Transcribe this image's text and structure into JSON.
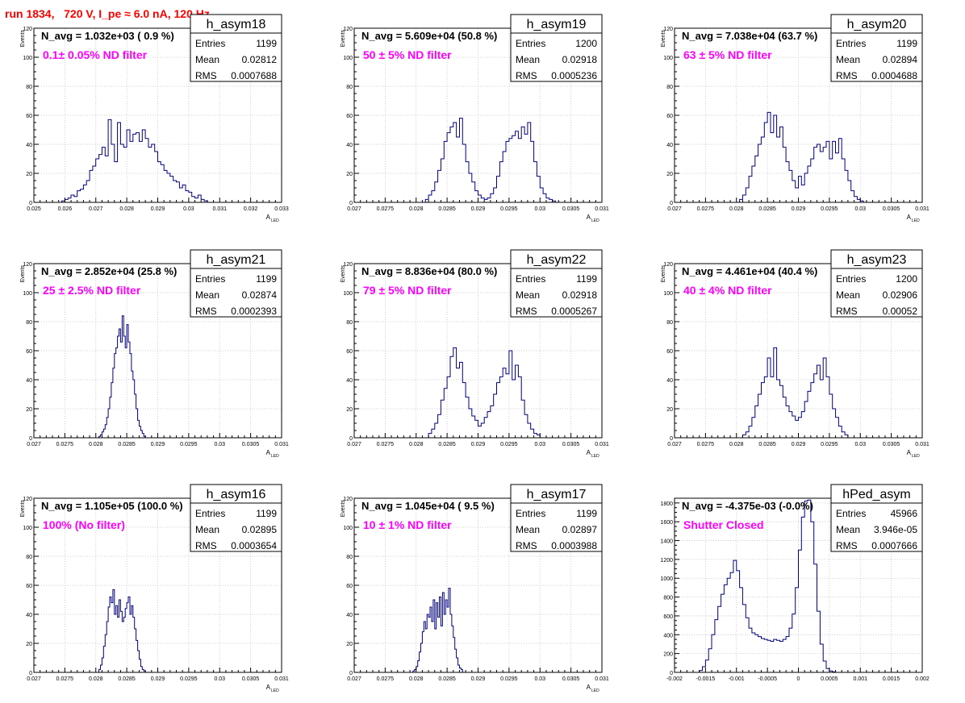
{
  "page": {
    "title": "run 1834,   720 V, I_pe ≈ 6.0 nA, 120 Hz"
  },
  "colors": {
    "hist": "#000080",
    "annotation": "#ff00ff",
    "title": "#ff0000",
    "axis": "#000000",
    "grid": "#c0c0c0"
  },
  "stats_labels": {
    "entries": "Entries",
    "mean": "Mean",
    "rms": "RMS"
  },
  "chart_data": [
    {
      "type": "histogram",
      "name": "h_asym18",
      "navg": "N_avg = 1.032e+03 ( 0.9 %)",
      "label": "0.1± 0.05% ND filter",
      "stats": {
        "entries": "1199",
        "mean": "0.02812",
        "rms": "0.0007688"
      },
      "xlabel": "A",
      "xlabel_sub": "LED",
      "ylabel": "Events",
      "xlim": [
        0.025,
        0.033
      ],
      "ylim": [
        0,
        120
      ],
      "xticks": [
        0.025,
        0.026,
        0.027,
        0.028,
        0.029,
        0.03,
        0.031,
        0.032,
        0.033
      ],
      "xticklabels": [
        "0.025",
        "0.026",
        "0.027",
        "0.028",
        "0.029",
        "0.03",
        "0.031",
        "0.032",
        "0.033"
      ],
      "yticks": [
        0,
        20,
        40,
        60,
        80,
        100,
        120
      ],
      "yticklabels": [
        "0",
        "20",
        "40",
        "60",
        "80",
        "100",
        "120"
      ],
      "bin_start": 0.0259,
      "bin_width": 0.0001,
      "counts": [
        1,
        2,
        3,
        5,
        4,
        8,
        9,
        12,
        15,
        22,
        25,
        30,
        33,
        38,
        32,
        57,
        40,
        28,
        55,
        40,
        38,
        50,
        42,
        47,
        48,
        42,
        50,
        44,
        38,
        40,
        35,
        28,
        26,
        22,
        20,
        18,
        15,
        14,
        10,
        12,
        8,
        7,
        4,
        3,
        5,
        2,
        1
      ]
    },
    {
      "type": "histogram",
      "name": "h_asym19",
      "navg": "N_avg = 5.609e+04 (50.8 %)",
      "label": "50 ± 5% ND filter",
      "stats": {
        "entries": "1200",
        "mean": "0.02918",
        "rms": "0.0005236"
      },
      "xlabel": "A",
      "xlabel_sub": "LED",
      "ylabel": "Events",
      "xlim": [
        0.027,
        0.031
      ],
      "ylim": [
        0,
        120
      ],
      "xticks": [
        0.027,
        0.0275,
        0.028,
        0.0285,
        0.029,
        0.0295,
        0.03,
        0.0305,
        0.031
      ],
      "xticklabels": [
        "0.027",
        "0.0275",
        "0.028",
        "0.0285",
        "0.029",
        "0.0295",
        "0.03",
        "0.0305",
        "0.031"
      ],
      "yticks": [
        0,
        20,
        40,
        60,
        80,
        100,
        120
      ],
      "yticklabels": [
        "0",
        "20",
        "40",
        "60",
        "80",
        "100",
        "120"
      ],
      "bin_start": 0.02815,
      "bin_width": 5e-05,
      "counts": [
        2,
        5,
        8,
        14,
        22,
        30,
        42,
        48,
        52,
        55,
        45,
        58,
        40,
        28,
        20,
        14,
        8,
        5,
        3,
        2,
        3,
        6,
        10,
        18,
        28,
        35,
        42,
        44,
        46,
        49,
        44,
        52,
        47,
        55,
        42,
        28,
        18,
        10,
        6,
        3,
        2,
        1
      ]
    },
    {
      "type": "histogram",
      "name": "h_asym20",
      "navg": "N_avg = 7.038e+04 (63.7 %)",
      "label": "63 ± 5% ND filter",
      "stats": {
        "entries": "1199",
        "mean": "0.02894",
        "rms": "0.0004688"
      },
      "xlabel": "A",
      "xlabel_sub": "LED",
      "ylabel": "Events",
      "xlim": [
        0.027,
        0.031
      ],
      "ylim": [
        0,
        120
      ],
      "xticks": [
        0.027,
        0.0275,
        0.028,
        0.0285,
        0.029,
        0.0295,
        0.03,
        0.0305,
        0.031
      ],
      "xticklabels": [
        "0.027",
        "0.0275",
        "0.028",
        "0.0285",
        "0.029",
        "0.0295",
        "0.03",
        "0.0305",
        "0.031"
      ],
      "yticks": [
        0,
        20,
        40,
        60,
        80,
        100,
        120
      ],
      "yticklabels": [
        "0",
        "20",
        "40",
        "60",
        "80",
        "100",
        "120"
      ],
      "bin_start": 0.02805,
      "bin_width": 5e-05,
      "counts": [
        2,
        5,
        10,
        18,
        25,
        32,
        40,
        45,
        55,
        62,
        48,
        60,
        45,
        52,
        38,
        28,
        22,
        15,
        10,
        18,
        12,
        20,
        25,
        30,
        38,
        40,
        35,
        38,
        42,
        30,
        42,
        34,
        44,
        30,
        22,
        15,
        8,
        4,
        2,
        1
      ]
    },
    {
      "type": "histogram",
      "name": "h_asym21",
      "navg": "N_avg = 2.852e+04 (25.8 %)",
      "label": "25 ± 2.5% ND filter",
      "stats": {
        "entries": "1199",
        "mean": "0.02874",
        "rms": "0.0002393"
      },
      "xlabel": "A",
      "xlabel_sub": "LED",
      "ylabel": "Events",
      "xlim": [
        0.027,
        0.031
      ],
      "ylim": [
        0,
        120
      ],
      "xticks": [
        0.027,
        0.0275,
        0.028,
        0.0285,
        0.029,
        0.0295,
        0.03,
        0.0305,
        0.031
      ],
      "xticklabels": [
        "0.027",
        "0.0275",
        "0.028",
        "0.0285",
        "0.029",
        "0.0295",
        "0.03",
        "0.0305",
        "0.031"
      ],
      "yticks": [
        0,
        20,
        40,
        60,
        80,
        100,
        120
      ],
      "yticklabels": [
        "0",
        "20",
        "40",
        "60",
        "80",
        "100",
        "120"
      ],
      "bin_start": 0.02805,
      "bin_width": 2.5e-05,
      "counts": [
        1,
        2,
        4,
        6,
        9,
        14,
        20,
        28,
        38,
        48,
        58,
        62,
        70,
        75,
        66,
        84,
        70,
        62,
        78,
        66,
        58,
        46,
        40,
        30,
        20,
        12,
        8,
        5,
        3,
        1
      ]
    },
    {
      "type": "histogram",
      "name": "h_asym22",
      "navg": "N_avg = 8.836e+04 (80.0 %)",
      "label": "79 ± 5% ND filter",
      "stats": {
        "entries": "1199",
        "mean": "0.02918",
        "rms": "0.0005267"
      },
      "xlabel": "A",
      "xlabel_sub": "LED",
      "ylabel": "Events",
      "xlim": [
        0.027,
        0.031
      ],
      "ylim": [
        0,
        120
      ],
      "xticks": [
        0.027,
        0.0275,
        0.028,
        0.0285,
        0.029,
        0.0295,
        0.03,
        0.0305,
        0.031
      ],
      "xticklabels": [
        "0.027",
        "0.0275",
        "0.028",
        "0.0285",
        "0.029",
        "0.0295",
        "0.03",
        "0.0305",
        "0.031"
      ],
      "yticks": [
        0,
        20,
        40,
        60,
        80,
        100,
        120
      ],
      "yticklabels": [
        "0",
        "20",
        "40",
        "60",
        "80",
        "100",
        "120"
      ],
      "bin_start": 0.0282,
      "bin_width": 5e-05,
      "counts": [
        3,
        6,
        10,
        16,
        26,
        34,
        42,
        56,
        62,
        48,
        52,
        38,
        28,
        20,
        15,
        12,
        8,
        10,
        14,
        18,
        22,
        30,
        38,
        42,
        48,
        44,
        60,
        40,
        50,
        42,
        26,
        16,
        10,
        6,
        3,
        2
      ]
    },
    {
      "type": "histogram",
      "name": "h_asym23",
      "navg": "N_avg = 4.461e+04 (40.4 %)",
      "label": "40 ± 4% ND filter",
      "stats": {
        "entries": "1200",
        "mean": "0.02906",
        "rms": "0.00052"
      },
      "xlabel": "A",
      "xlabel_sub": "LED",
      "ylabel": "Events",
      "xlim": [
        0.027,
        0.031
      ],
      "ylim": [
        0,
        120
      ],
      "xticks": [
        0.027,
        0.0275,
        0.028,
        0.0285,
        0.029,
        0.0295,
        0.03,
        0.0305,
        0.031
      ],
      "xticklabels": [
        "0.027",
        "0.0275",
        "0.028",
        "0.0285",
        "0.029",
        "0.0295",
        "0.03",
        "0.0305",
        "0.031"
      ],
      "yticks": [
        0,
        20,
        40,
        60,
        80,
        100,
        120
      ],
      "yticklabels": [
        "0",
        "20",
        "40",
        "60",
        "80",
        "100",
        "120"
      ],
      "bin_start": 0.0281,
      "bin_width": 5e-05,
      "counts": [
        2,
        4,
        8,
        14,
        22,
        30,
        38,
        42,
        55,
        42,
        62,
        40,
        36,
        28,
        22,
        18,
        15,
        12,
        14,
        18,
        25,
        32,
        38,
        44,
        50,
        40,
        55,
        42,
        30,
        20,
        14,
        8,
        4,
        2
      ]
    },
    {
      "type": "histogram",
      "name": "h_asym16",
      "navg": "N_avg = 1.105e+05 (100.0 %)",
      "label": "100% (No filter)",
      "stats": {
        "entries": "1199",
        "mean": "0.02895",
        "rms": "0.0003654"
      },
      "xlabel": "A",
      "xlabel_sub": "LED",
      "ylabel": "Events",
      "xlim": [
        0.027,
        0.031
      ],
      "ylim": [
        0,
        120
      ],
      "xticks": [
        0.027,
        0.0275,
        0.028,
        0.0285,
        0.029,
        0.0295,
        0.03,
        0.0305,
        0.031
      ],
      "xticklabels": [
        "0.027",
        "0.0275",
        "0.028",
        "0.0285",
        "0.029",
        "0.0295",
        "0.03",
        "0.0305",
        "0.031"
      ],
      "yticks": [
        0,
        20,
        40,
        60,
        80,
        100,
        120
      ],
      "yticklabels": [
        "0",
        "20",
        "40",
        "60",
        "80",
        "100",
        "120"
      ],
      "bin_start": 0.02805,
      "bin_width": 2.5e-05,
      "counts": [
        2,
        5,
        10,
        18,
        26,
        35,
        45,
        52,
        48,
        57,
        40,
        46,
        38,
        50,
        42,
        35,
        38,
        44,
        48,
        52,
        40,
        46,
        38,
        30,
        22,
        15,
        9,
        4,
        2,
        1
      ]
    },
    {
      "type": "histogram",
      "name": "h_asym17",
      "navg": "N_avg = 1.045e+04 ( 9.5 %)",
      "label": "10 ± 1% ND filter",
      "stats": {
        "entries": "1199",
        "mean": "0.02897",
        "rms": "0.0003988"
      },
      "xlabel": "A",
      "xlabel_sub": "LED",
      "ylabel": "Events",
      "xlim": [
        0.027,
        0.031
      ],
      "ylim": [
        0,
        120
      ],
      "xticks": [
        0.027,
        0.0275,
        0.028,
        0.0285,
        0.029,
        0.0295,
        0.03,
        0.0305,
        0.031
      ],
      "xticklabels": [
        "0.027",
        "0.0275",
        "0.028",
        "0.0285",
        "0.029",
        "0.0295",
        "0.03",
        "0.0305",
        "0.031"
      ],
      "yticks": [
        0,
        20,
        40,
        60,
        80,
        100,
        120
      ],
      "yticklabels": [
        "0",
        "20",
        "40",
        "60",
        "80",
        "100",
        "120"
      ],
      "bin_start": 0.02795,
      "bin_width": 2.5e-05,
      "counts": [
        1,
        2,
        4,
        8,
        14,
        20,
        28,
        35,
        30,
        40,
        38,
        45,
        35,
        50,
        30,
        48,
        38,
        52,
        32,
        55,
        40,
        50,
        45,
        58,
        40,
        32,
        24,
        16,
        10,
        5,
        3,
        2
      ]
    },
    {
      "type": "histogram",
      "name": "hPed_asym",
      "navg": "N_avg = -4.375e-03 (-0.0%)",
      "label": "Shutter Closed",
      "stats": {
        "entries": "45966",
        "mean": "3.946e-05",
        "rms": "0.0007666"
      },
      "xlabel": "",
      "xlabel_sub": "",
      "ylabel": "",
      "xlim": [
        -0.002,
        0.002
      ],
      "ylim": [
        0,
        1850
      ],
      "xticks": [
        -0.002,
        -0.0015,
        -0.001,
        -0.0005,
        0,
        0.0005,
        0.001,
        0.0015,
        0.002
      ],
      "xticklabels": [
        "-0.002",
        "-0.0015",
        "-0.001",
        "-0.0005",
        "0",
        "0.0005",
        "0.001",
        "0.0015",
        "0.002"
      ],
      "yticks": [
        0,
        200,
        400,
        600,
        800,
        1000,
        1200,
        1400,
        1600,
        1800
      ],
      "yticklabels": [
        "0",
        "200",
        "400",
        "600",
        "800",
        "1000",
        "1200",
        "1400",
        "1600",
        "1800"
      ],
      "bin_start": -0.0016,
      "bin_width": 5e-05,
      "counts": [
        20,
        60,
        130,
        250,
        400,
        560,
        700,
        830,
        930,
        1000,
        1060,
        1190,
        1080,
        900,
        720,
        580,
        470,
        420,
        400,
        380,
        360,
        350,
        340,
        330,
        350,
        340,
        330,
        350,
        380,
        470,
        620,
        900,
        1300,
        1650,
        1820,
        1830,
        1600,
        1150,
        650,
        300,
        120,
        40,
        15,
        5
      ]
    }
  ]
}
